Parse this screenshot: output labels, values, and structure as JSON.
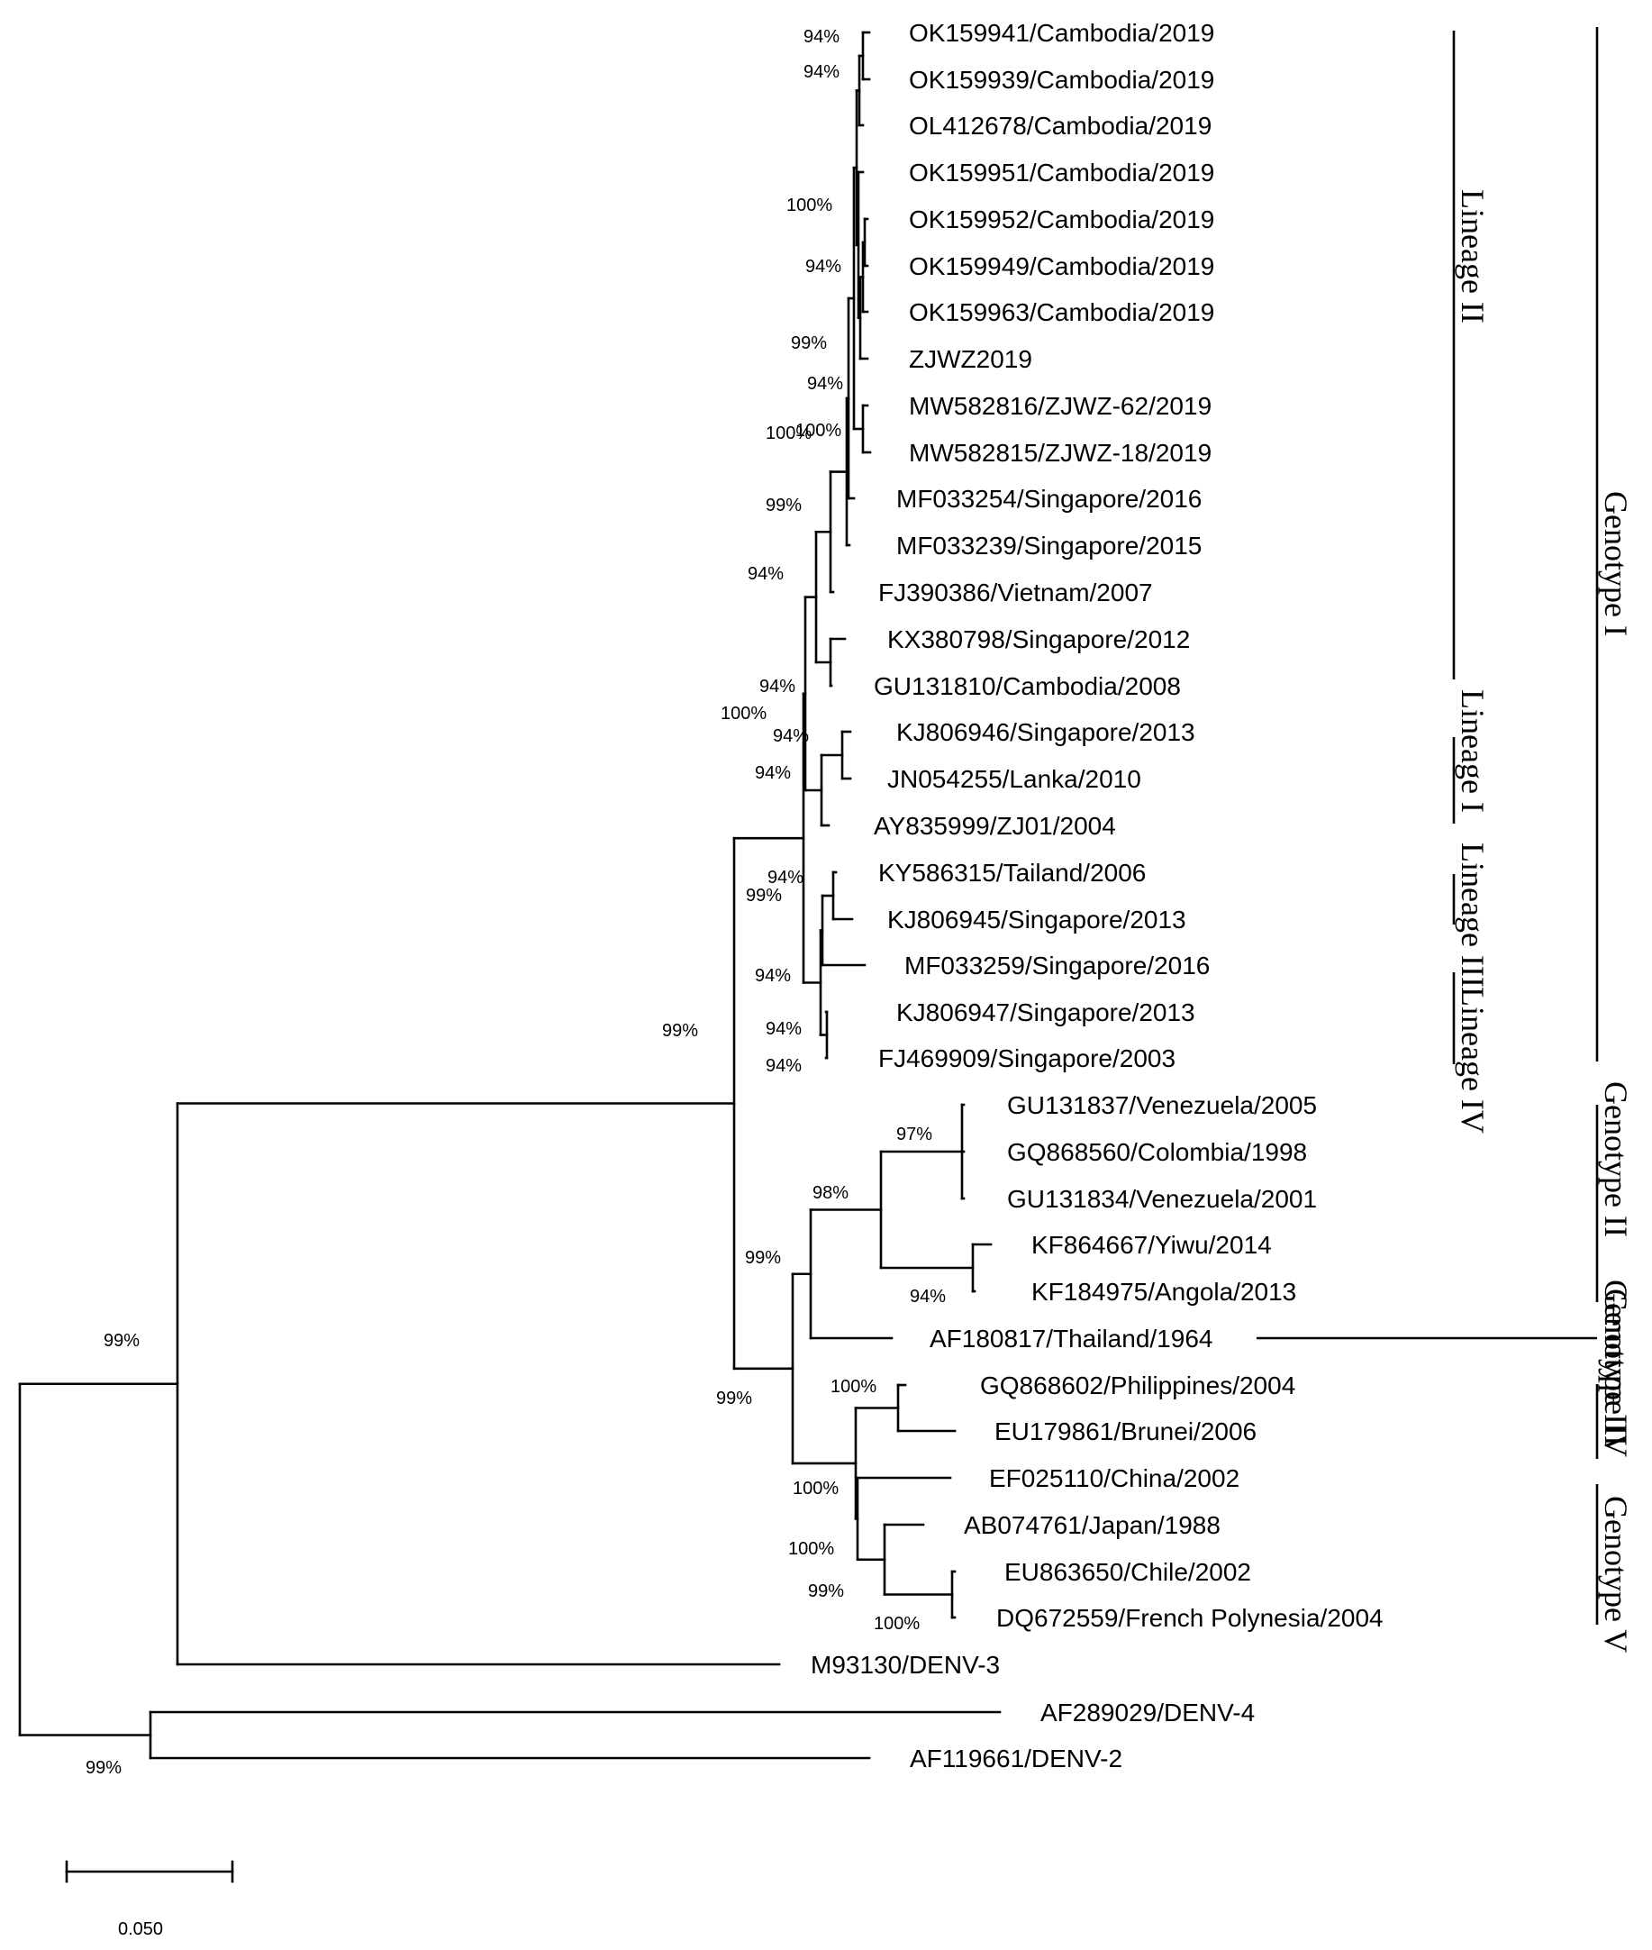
{
  "taxa": [
    "OK159941/Cambodia/2019",
    "OK159939/Cambodia/2019",
    "OL412678/Cambodia/2019",
    "OK159951/Cambodia/2019",
    "OK159952/Cambodia/2019",
    "OK159949/Cambodia/2019",
    "OK159963/Cambodia/2019",
    "ZJWZ2019",
    "MW582816/ZJWZ-62/2019",
    "MW582815/ZJWZ-18/2019",
    "MF033254/Singapore/2016",
    "MF033239/Singapore/2015",
    "FJ390386/Vietnam/2007",
    "KX380798/Singapore/2012",
    "GU131810/Cambodia/2008",
    "KJ806946/Singapore/2013",
    "JN054255/Lanka/2010",
    "AY835999/ZJ01/2004",
    "KY586315/Tailand/2006",
    "KJ806945/Singapore/2013",
    "MF033259/Singapore/2016",
    "KJ806947/Singapore/2013",
    "FJ469909/Singapore/2003",
    "GU131837/Venezuela/2005",
    "GQ868560/Colombia/1998",
    "GU131834/Venezuela/2001",
    "KF864667/Yiwu/2014",
    "KF184975/Angola/2013",
    "AF180817/Thailand/1964",
    "GQ868602/Philippines/2004",
    "EU179861/Brunei/2006",
    "EF025110/China/2002",
    "AB074761/Japan/1988",
    "EU863650/Chile/2002",
    "DQ672559/French Polynesia/2004",
    "M93130/DENV-3",
    "AF289029/DENV-4",
    "AF119661/DENV-2"
  ],
  "support_values": [
    "94%",
    "94%",
    "100%",
    "94%",
    "99%",
    "94%",
    "100%",
    "100%",
    "99%",
    "94%",
    "94%",
    "100%",
    "94%",
    "94%",
    "94%",
    "99%",
    "94%",
    "94%",
    "94%",
    "99%",
    "97%",
    "98%",
    "99%",
    "94%",
    "99%",
    "99%",
    "100%",
    "100%",
    "100%",
    "99%",
    "100%",
    "99%"
  ],
  "clades": [
    {
      "label": "Lineage II"
    },
    {
      "label": "Lineage I"
    },
    {
      "label": "Lineage III"
    },
    {
      "label": "Lineage IV"
    },
    {
      "label": "Genotype I"
    },
    {
      "label": "Genotype II"
    },
    {
      "label": "Genotype III"
    },
    {
      "label": "Genotype IV"
    },
    {
      "label": "Genotype V"
    }
  ],
  "scale_bar": {
    "label": "0.050"
  }
}
